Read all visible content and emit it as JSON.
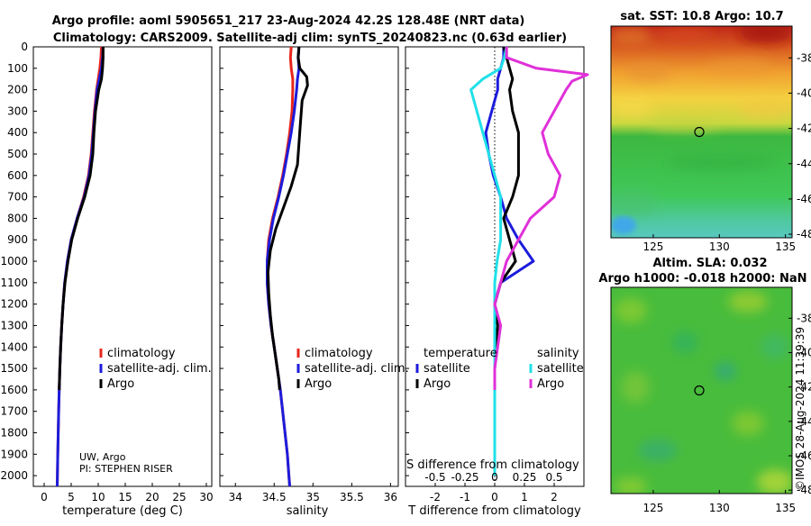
{
  "title": {
    "line1": "Argo profile: aoml 5905651_217 23-Aug-2024 42.2S 128.48E (NRT data)",
    "line2": "Climatology: CARS2009. Satellite-adj clim: synTS_20240823.nc (0.63d earlier)"
  },
  "colors": {
    "climatology": "#e8261c",
    "satellite": "#1c1cdc",
    "argo": "#000000",
    "sal_satellite": "#20e0e8",
    "sal_argo": "#e030d8"
  },
  "chart_data": [
    {
      "type": "line",
      "id": "temperature",
      "xlabel": "temperature (deg C)",
      "ylabel": "",
      "xlim": [
        -2,
        31
      ],
      "ylim": [
        2050,
        0
      ],
      "xticks": [
        "0",
        "5",
        "10",
        "15",
        "20",
        "25",
        "30"
      ],
      "yticks": [
        "0",
        "100",
        "200",
        "300",
        "400",
        "500",
        "600",
        "700",
        "800",
        "900",
        "1000",
        "1100",
        "1200",
        "1300",
        "1400",
        "1500",
        "1600",
        "1700",
        "1800",
        "1900",
        "2000"
      ],
      "legend": [
        "climatology",
        "satellite-adj. clim.",
        "Argo"
      ],
      "legend_position": "center-right",
      "annotation": [
        "UW, Argo",
        "PI: STEPHEN RISER"
      ],
      "series": [
        {
          "name": "climatology",
          "depth": [
            0,
            50,
            100,
            150,
            200,
            300,
            400,
            500,
            600,
            700,
            800,
            900,
            1000,
            1100,
            1200,
            1300,
            1400,
            1500,
            1600,
            1700,
            1800,
            1900,
            2000,
            2050
          ],
          "values": [
            10.6,
            10.5,
            10.3,
            10.0,
            9.7,
            9.3,
            9.0,
            8.7,
            8.2,
            7.3,
            6.1,
            5.0,
            4.3,
            3.8,
            3.5,
            3.25,
            3.05,
            2.9,
            2.78,
            2.68,
            2.6,
            2.52,
            2.45,
            2.42
          ]
        },
        {
          "name": "satellite-adj. clim.",
          "depth": [
            0,
            50,
            100,
            150,
            200,
            300,
            400,
            500,
            600,
            700,
            800,
            900,
            1000,
            1100,
            1200,
            1300,
            1400,
            1500,
            1600,
            1700,
            1800,
            1900,
            2000,
            2050
          ],
          "values": [
            10.9,
            10.8,
            10.6,
            10.2,
            9.8,
            9.4,
            9.1,
            8.8,
            8.3,
            7.4,
            6.1,
            5.0,
            4.3,
            3.8,
            3.5,
            3.25,
            3.05,
            2.9,
            2.78,
            2.68,
            2.6,
            2.52,
            2.45,
            2.42
          ]
        },
        {
          "name": "Argo",
          "depth": [
            0,
            50,
            100,
            150,
            200,
            300,
            400,
            500,
            600,
            700,
            800,
            900,
            1000,
            1100,
            1200,
            1300,
            1400,
            1500,
            1600
          ],
          "values": [
            10.9,
            10.9,
            10.8,
            10.6,
            10.1,
            9.5,
            9.2,
            9.0,
            8.5,
            7.5,
            6.2,
            5.1,
            4.4,
            3.85,
            3.5,
            3.25,
            3.05,
            2.9,
            2.78
          ]
        }
      ]
    },
    {
      "type": "line",
      "id": "salinity",
      "xlabel": "salinity",
      "ylabel": "",
      "xlim": [
        33.8,
        36.1
      ],
      "ylim": [
        2050,
        0
      ],
      "xticks": [
        "34",
        "34.5",
        "35",
        "35.5",
        "36"
      ],
      "legend": [
        "climatology",
        "satellite-adj. clim.",
        "Argo"
      ],
      "legend_position": "center-right",
      "series": [
        {
          "name": "climatology",
          "depth": [
            0,
            50,
            100,
            150,
            200,
            300,
            400,
            500,
            600,
            700,
            800,
            900,
            1000,
            1100,
            1200,
            1300,
            1400,
            1500,
            1600,
            1700,
            1800,
            1900,
            2000,
            2050
          ],
          "values": [
            34.72,
            34.71,
            34.72,
            34.74,
            34.74,
            34.73,
            34.7,
            34.66,
            34.61,
            34.55,
            34.48,
            34.43,
            34.41,
            34.41,
            34.43,
            34.46,
            34.5,
            34.54,
            34.58,
            34.61,
            34.64,
            34.67,
            34.69,
            34.7
          ]
        },
        {
          "name": "satellite-adj. clim.",
          "depth": [
            0,
            50,
            100,
            150,
            200,
            300,
            400,
            500,
            600,
            700,
            800,
            900,
            1000,
            1100,
            1200,
            1300,
            1400,
            1500,
            1600,
            1700,
            1800,
            1900,
            2000,
            2050
          ],
          "values": [
            34.82,
            34.81,
            34.82,
            34.8,
            34.79,
            34.76,
            34.72,
            34.67,
            34.62,
            34.56,
            34.49,
            34.44,
            34.41,
            34.41,
            34.43,
            34.46,
            34.5,
            34.54,
            34.58,
            34.61,
            34.64,
            34.67,
            34.69,
            34.7
          ]
        },
        {
          "name": "Argo",
          "depth": [
            0,
            50,
            100,
            140,
            180,
            250,
            350,
            450,
            550,
            650,
            750,
            850,
            950,
            1050,
            1150,
            1250,
            1350,
            1450,
            1550,
            1600
          ],
          "values": [
            34.82,
            34.81,
            34.83,
            34.92,
            34.93,
            34.86,
            34.84,
            34.82,
            34.8,
            34.72,
            34.62,
            34.52,
            34.45,
            34.42,
            34.43,
            34.45,
            34.48,
            34.52,
            34.56,
            34.57
          ]
        }
      ]
    },
    {
      "type": "line",
      "id": "differences",
      "xlabel": "T difference from climatology",
      "xlabel_top": "S difference from climatology",
      "xlim": [
        -3,
        3
      ],
      "ylim": [
        2050,
        0
      ],
      "xticks": [
        "-2",
        "-1",
        "0",
        "1",
        "2"
      ],
      "xticks_s": [
        "-0.5",
        "-0.25",
        "0",
        "0.25",
        "0.5"
      ],
      "legend_temperature_title": "temperature",
      "legend_salinity_title": "salinity",
      "legend_temperature": [
        "satellite",
        "Argo"
      ],
      "legend_salinity": [
        "satellite",
        "Argo"
      ],
      "series": [
        {
          "name": "temperature satellite",
          "depth": [
            0,
            50,
            100,
            150,
            200,
            300,
            400,
            500,
            600,
            700,
            800,
            900,
            1000,
            1100,
            1200,
            1300,
            1500,
            1700,
            2000
          ],
          "values": [
            0.3,
            0.3,
            0.2,
            0.1,
            0.1,
            -0.1,
            -0.3,
            -0.2,
            -0.05,
            0.2,
            0.4,
            0.8,
            1.3,
            0.2,
            0,
            0,
            0,
            0,
            0
          ]
        },
        {
          "name": "temperature Argo",
          "depth": [
            0,
            50,
            100,
            150,
            200,
            300,
            400,
            500,
            600,
            700,
            800,
            900,
            1000,
            1100,
            1200,
            1300,
            1500,
            1600
          ],
          "values": [
            0.3,
            0.4,
            0.5,
            0.6,
            0.5,
            0.6,
            0.8,
            0.8,
            0.8,
            0.6,
            0.3,
            0.5,
            0.7,
            0.2,
            0,
            0.1,
            0,
            0
          ]
        },
        {
          "name": "salinity satellite",
          "depth": [
            0,
            50,
            100,
            150,
            200,
            300,
            400,
            500,
            600,
            700,
            800,
            900,
            1000,
            1100,
            1200,
            1300,
            1500,
            1700,
            2000
          ],
          "values": [
            0.1,
            0.08,
            0.05,
            -0.1,
            -0.2,
            -0.15,
            -0.1,
            -0.05,
            0.0,
            0.05,
            0.05,
            0.05,
            0.02,
            0,
            0,
            0,
            0,
            0,
            0
          ]
        },
        {
          "name": "salinity Argo",
          "depth": [
            0,
            50,
            100,
            130,
            160,
            200,
            300,
            400,
            500,
            600,
            700,
            800,
            900,
            1000,
            1100,
            1200,
            1300,
            1500,
            1600
          ],
          "values": [
            0.1,
            0.1,
            0.35,
            0.78,
            0.65,
            0.6,
            0.5,
            0.4,
            0.45,
            0.55,
            0.5,
            0.3,
            0.2,
            0.1,
            0.05,
            0,
            0.05,
            0,
            0
          ]
        }
      ]
    },
    {
      "type": "heatmap",
      "id": "sst_map",
      "title": "sat. SST: 10.8 Argo: 10.7",
      "xticks": [
        "125",
        "130",
        "135"
      ],
      "yticks": [
        "-38",
        "-40",
        "-42",
        "-44",
        "-46",
        "-48"
      ],
      "xlim": [
        121.8,
        135.5
      ],
      "ylim": [
        -48.2,
        -36.2
      ],
      "argo_position": [
        128.48,
        -42.2
      ]
    },
    {
      "type": "heatmap",
      "id": "sla_map",
      "title_line1": "Altim. SLA: 0.032",
      "title_line2": "Argo h1000: -0.018 h2000: NaN",
      "xticks": [
        "125",
        "130",
        "135"
      ],
      "yticks": [
        "-38",
        "-40",
        "-42",
        "-44",
        "-46",
        "-48"
      ],
      "xlim": [
        121.8,
        135.5
      ],
      "ylim": [
        -48.2,
        -36.2
      ],
      "argo_position": [
        128.48,
        -42.2
      ]
    }
  ],
  "watermark": "©IMOS 28-Aug-2024 11:39:39"
}
